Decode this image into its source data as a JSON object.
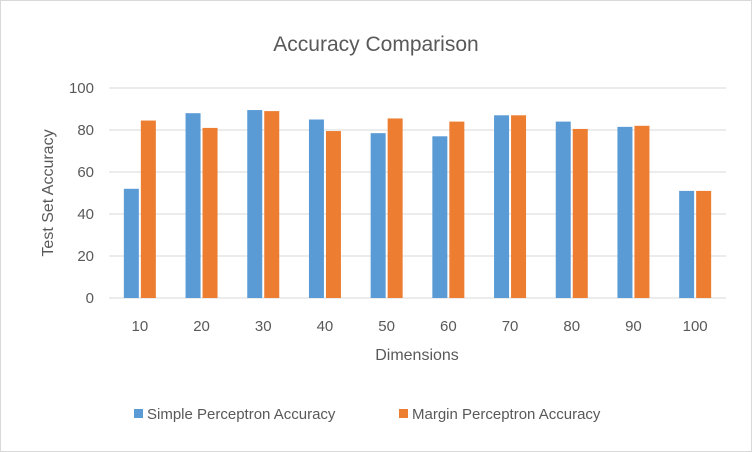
{
  "chart_data": {
    "type": "bar",
    "title": "Accuracy Comparison",
    "xlabel": "Dimensions",
    "ylabel": "Test Set Accuracy",
    "ylim": [
      0,
      100
    ],
    "yticks": [
      0,
      20,
      40,
      60,
      80,
      100
    ],
    "grid": true,
    "legend_position": "bottom",
    "categories": [
      "10",
      "20",
      "30",
      "40",
      "50",
      "60",
      "70",
      "80",
      "90",
      "100"
    ],
    "series": [
      {
        "name": "Simple Perceptron Accuracy",
        "color": "#5b9bd5",
        "values": [
          52,
          88,
          89.5,
          85,
          78.5,
          77,
          87,
          84,
          81.5,
          51
        ]
      },
      {
        "name": "Margin Perceptron Accuracy",
        "color": "#ed7d31",
        "values": [
          84.5,
          81,
          89,
          79.5,
          85.5,
          84,
          87,
          80.5,
          82,
          51
        ]
      }
    ]
  }
}
